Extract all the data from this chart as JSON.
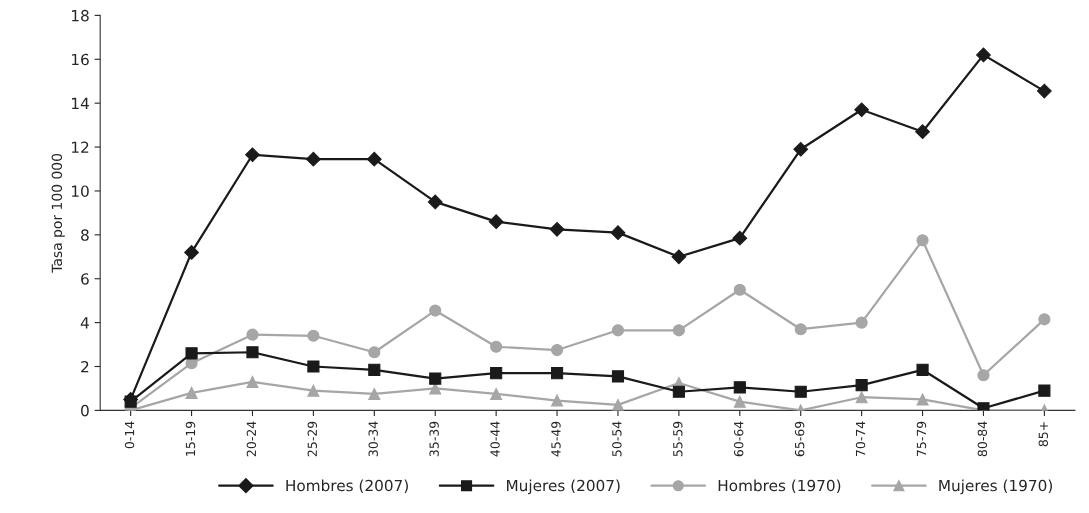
{
  "chart_data": {
    "type": "line",
    "ylabel": "Tasa por 100 000",
    "categories": [
      "0-14",
      "15-19",
      "20-24",
      "25-29",
      "30-34",
      "35-39",
      "40-44",
      "45-49",
      "50-54",
      "55-59",
      "60-64",
      "65-69",
      "70-74",
      "75-79",
      "80-84",
      "85+"
    ],
    "series": [
      {
        "name": "Hombres (2007)",
        "color": "#1a1a1a",
        "marker": "diamond",
        "values": [
          0.5,
          7.2,
          11.65,
          11.45,
          11.45,
          9.5,
          8.6,
          8.25,
          8.1,
          7.0,
          7.85,
          11.9,
          13.7,
          12.7,
          16.2,
          14.55
        ]
      },
      {
        "name": "Mujeres (2007)",
        "color": "#1a1a1a",
        "marker": "square",
        "values": [
          0.4,
          2.6,
          2.65,
          2.0,
          1.85,
          1.45,
          1.7,
          1.7,
          1.55,
          0.85,
          1.05,
          0.85,
          1.15,
          1.85,
          0.1,
          0.9
        ]
      },
      {
        "name": "Hombres (1970)",
        "color": "#a6a6a6",
        "marker": "circle",
        "values": [
          0.1,
          2.15,
          3.45,
          3.4,
          2.65,
          4.55,
          2.9,
          2.75,
          3.65,
          3.65,
          5.5,
          3.7,
          4.0,
          7.75,
          1.6,
          4.15
        ]
      },
      {
        "name": "Mujeres (1970)",
        "color": "#a6a6a6",
        "marker": "triangle",
        "values": [
          0,
          0.8,
          1.3,
          0.9,
          0.75,
          1.0,
          0.75,
          0.45,
          0.25,
          1.25,
          0.4,
          0,
          0.6,
          0.5,
          0,
          0
        ]
      }
    ],
    "ylim": [
      0,
      18
    ],
    "yticks": [
      0,
      2,
      4,
      6,
      8,
      10,
      12,
      14,
      16,
      18
    ],
    "grid": false,
    "legend": "bottom",
    "line_style": "solid"
  }
}
